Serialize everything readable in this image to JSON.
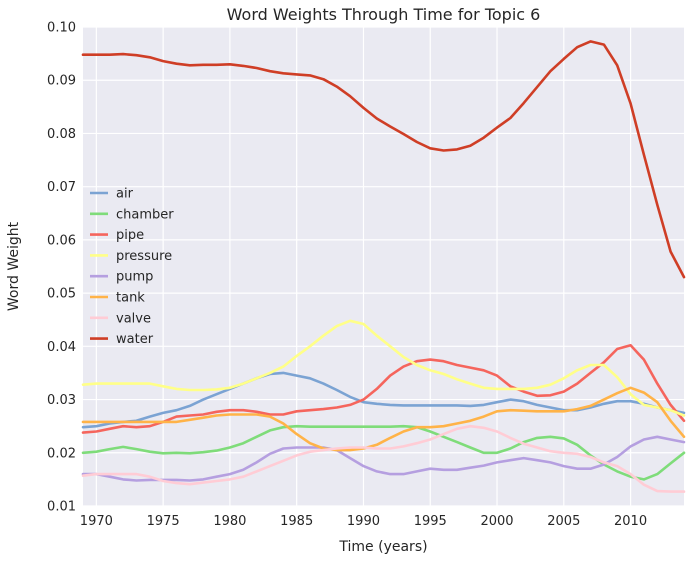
{
  "chart_data": {
    "type": "line",
    "title": "Word Weights Through Time for Topic 6",
    "xlabel": "Time (years)",
    "ylabel": "Word Weight",
    "xlim": [
      1969,
      2014
    ],
    "ylim": [
      0.01,
      0.1
    ],
    "xticks": [
      1970,
      1975,
      1980,
      1985,
      1990,
      1995,
      2000,
      2005,
      2010
    ],
    "yticks": [
      "0.01",
      "0.02",
      "0.03",
      "0.04",
      "0.05",
      "0.06",
      "0.07",
      "0.08",
      "0.09",
      "0.10"
    ],
    "grid": true,
    "legend_position": "center-left",
    "x": [
      1969,
      1970,
      1971,
      1972,
      1973,
      1974,
      1975,
      1976,
      1977,
      1978,
      1979,
      1980,
      1981,
      1982,
      1983,
      1984,
      1985,
      1986,
      1987,
      1988,
      1989,
      1990,
      1991,
      1992,
      1993,
      1994,
      1995,
      1996,
      1997,
      1998,
      1999,
      2000,
      2001,
      2002,
      2003,
      2004,
      2005,
      2006,
      2007,
      2008,
      2009,
      2010,
      2011,
      2012,
      2013,
      2014
    ],
    "series": [
      {
        "name": "air",
        "color": "#7ba3d3",
        "values": [
          0.0248,
          0.025,
          0.0255,
          0.0258,
          0.026,
          0.0268,
          0.0275,
          0.028,
          0.0288,
          0.03,
          0.031,
          0.032,
          0.033,
          0.034,
          0.0348,
          0.035,
          0.0345,
          0.034,
          0.033,
          0.0318,
          0.0305,
          0.0295,
          0.0292,
          0.029,
          0.0289,
          0.0289,
          0.0289,
          0.0289,
          0.0289,
          0.0288,
          0.029,
          0.0295,
          0.03,
          0.0297,
          0.029,
          0.0285,
          0.028,
          0.028,
          0.0285,
          0.0292,
          0.0297,
          0.0297,
          0.0292,
          0.0285,
          0.028,
          0.0275
        ]
      },
      {
        "name": "chamber",
        "color": "#7fdc7a",
        "values": [
          0.02,
          0.0202,
          0.0207,
          0.0211,
          0.0207,
          0.0202,
          0.0199,
          0.02,
          0.0199,
          0.0201,
          0.0204,
          0.021,
          0.0218,
          0.023,
          0.0242,
          0.0248,
          0.025,
          0.0249,
          0.0249,
          0.0249,
          0.0249,
          0.0249,
          0.0249,
          0.0249,
          0.025,
          0.0248,
          0.024,
          0.023,
          0.022,
          0.021,
          0.02,
          0.02,
          0.0208,
          0.022,
          0.0228,
          0.023,
          0.0227,
          0.0215,
          0.0195,
          0.0178,
          0.0165,
          0.0155,
          0.015,
          0.016,
          0.018,
          0.02
        ]
      },
      {
        "name": "pipe",
        "color": "#f5655d",
        "values": [
          0.0238,
          0.024,
          0.0245,
          0.025,
          0.0248,
          0.025,
          0.0258,
          0.0268,
          0.027,
          0.0272,
          0.0277,
          0.028,
          0.028,
          0.0277,
          0.0272,
          0.0272,
          0.0278,
          0.028,
          0.0282,
          0.0285,
          0.029,
          0.03,
          0.032,
          0.0345,
          0.0362,
          0.0372,
          0.0375,
          0.0372,
          0.0365,
          0.036,
          0.0355,
          0.0345,
          0.0325,
          0.0315,
          0.0307,
          0.0308,
          0.0315,
          0.033,
          0.035,
          0.037,
          0.0395,
          0.0402,
          0.0375,
          0.033,
          0.029,
          0.026
        ]
      },
      {
        "name": "pressure",
        "color": "#ffff88",
        "values": [
          0.0328,
          0.033,
          0.033,
          0.033,
          0.033,
          0.033,
          0.0325,
          0.032,
          0.0318,
          0.0318,
          0.0319,
          0.0322,
          0.033,
          0.034,
          0.035,
          0.0362,
          0.0382,
          0.04,
          0.042,
          0.0438,
          0.0448,
          0.0442,
          0.042,
          0.04,
          0.038,
          0.0365,
          0.0355,
          0.0348,
          0.0338,
          0.033,
          0.0322,
          0.032,
          0.032,
          0.032,
          0.0322,
          0.0328,
          0.034,
          0.0355,
          0.0365,
          0.0365,
          0.0342,
          0.031,
          0.029,
          0.0285,
          0.028,
          0.027
        ]
      },
      {
        "name": "pump",
        "color": "#b59fe0",
        "values": [
          0.016,
          0.016,
          0.0155,
          0.015,
          0.0148,
          0.0149,
          0.0149,
          0.0149,
          0.0148,
          0.015,
          0.0155,
          0.016,
          0.0168,
          0.0182,
          0.0198,
          0.0208,
          0.021,
          0.021,
          0.021,
          0.0205,
          0.019,
          0.0175,
          0.0165,
          0.016,
          0.016,
          0.0165,
          0.017,
          0.0168,
          0.0168,
          0.0172,
          0.0176,
          0.0182,
          0.0186,
          0.019,
          0.0186,
          0.0182,
          0.0175,
          0.017,
          0.017,
          0.0178,
          0.0192,
          0.0212,
          0.0225,
          0.023,
          0.0225,
          0.022
        ]
      },
      {
        "name": "tank",
        "color": "#ffb348",
        "values": [
          0.0258,
          0.0258,
          0.0258,
          0.0258,
          0.0258,
          0.0258,
          0.0258,
          0.0258,
          0.0262,
          0.0266,
          0.027,
          0.0272,
          0.0272,
          0.0272,
          0.0268,
          0.0255,
          0.0235,
          0.0218,
          0.0208,
          0.0205,
          0.0205,
          0.0208,
          0.0215,
          0.0228,
          0.024,
          0.0248,
          0.0248,
          0.025,
          0.0255,
          0.026,
          0.0268,
          0.0278,
          0.028,
          0.0279,
          0.0278,
          0.0278,
          0.0278,
          0.0282,
          0.0288,
          0.03,
          0.0312,
          0.0322,
          0.0313,
          0.0295,
          0.026,
          0.023
        ]
      },
      {
        "name": "valve",
        "color": "#ffccd5",
        "values": [
          0.0157,
          0.016,
          0.016,
          0.016,
          0.016,
          0.0155,
          0.0147,
          0.0143,
          0.0141,
          0.0144,
          0.0147,
          0.015,
          0.0155,
          0.0165,
          0.0175,
          0.0185,
          0.0195,
          0.0202,
          0.0205,
          0.0208,
          0.021,
          0.021,
          0.0208,
          0.0208,
          0.0212,
          0.0218,
          0.0225,
          0.0235,
          0.0245,
          0.025,
          0.0247,
          0.024,
          0.0228,
          0.0217,
          0.021,
          0.0203,
          0.02,
          0.0198,
          0.0192,
          0.0182,
          0.0175,
          0.016,
          0.014,
          0.0128,
          0.0127,
          0.0127
        ]
      },
      {
        "name": "water",
        "color": "#cf3e26",
        "values": [
          0.0948,
          0.0948,
          0.0948,
          0.0949,
          0.0947,
          0.0943,
          0.0936,
          0.0931,
          0.0928,
          0.0929,
          0.0929,
          0.093,
          0.0927,
          0.0923,
          0.0917,
          0.0913,
          0.0911,
          0.0909,
          0.0902,
          0.0888,
          0.087,
          0.0848,
          0.0828,
          0.0813,
          0.0799,
          0.0784,
          0.0772,
          0.0768,
          0.077,
          0.0777,
          0.0792,
          0.0811,
          0.0829,
          0.0857,
          0.0887,
          0.0917,
          0.094,
          0.0962,
          0.0973,
          0.0967,
          0.0928,
          0.0856,
          0.076,
          0.0666,
          0.0578,
          0.053
        ]
      }
    ]
  }
}
